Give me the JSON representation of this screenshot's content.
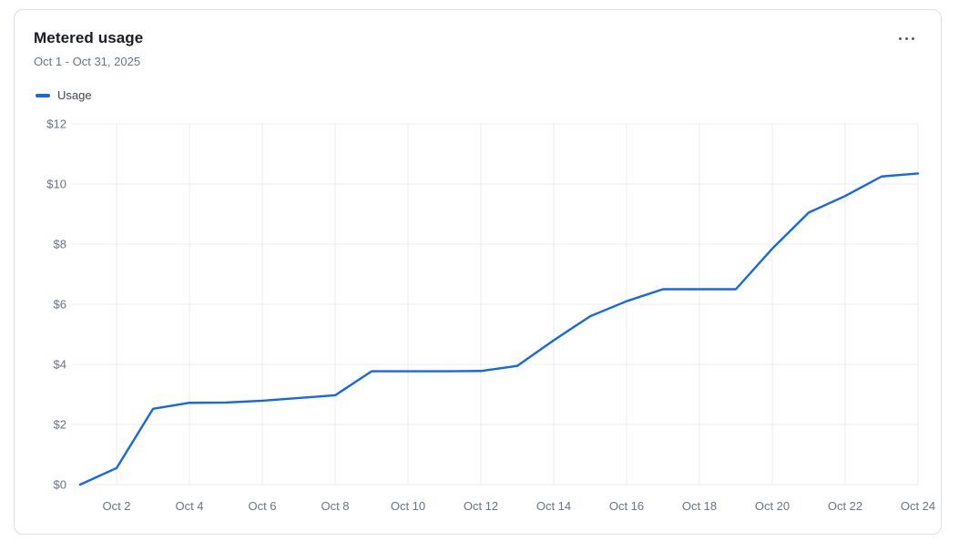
{
  "card": {
    "title": "Metered usage",
    "date_range": "Oct 1 - Oct 31, 2025",
    "menu_icon": "ellipsis-icon"
  },
  "legend": {
    "series_label": "Usage"
  },
  "colors": {
    "line": "#1467e8",
    "grid": "#e8ebef",
    "axis_text": "#687385",
    "title_text": "#1a1b25",
    "subtitle_text": "#687385",
    "legend_text": "#414552",
    "card_border": "#d9dfe6",
    "menu_dots": "#545b66"
  },
  "chart_data": {
    "type": "line",
    "title": "Metered usage",
    "subtitle": "Oct 1 - Oct 31, 2025",
    "y_unit": "$",
    "ylim": [
      0,
      12
    ],
    "y_tick_step": 2,
    "grid": true,
    "legend_position": "top-left",
    "x": [
      "Oct 1",
      "Oct 2",
      "Oct 3",
      "Oct 4",
      "Oct 5",
      "Oct 6",
      "Oct 7",
      "Oct 8",
      "Oct 9",
      "Oct 10",
      "Oct 11",
      "Oct 12",
      "Oct 13",
      "Oct 14",
      "Oct 15",
      "Oct 16",
      "Oct 17",
      "Oct 18",
      "Oct 19",
      "Oct 20",
      "Oct 21",
      "Oct 22",
      "Oct 23",
      "Oct 24"
    ],
    "series": [
      {
        "name": "Usage",
        "values": [
          0,
          0.55,
          2.52,
          2.72,
          2.73,
          2.79,
          2.88,
          2.97,
          3.77,
          3.77,
          3.77,
          3.78,
          3.95,
          4.8,
          5.6,
          6.1,
          6.5,
          6.5,
          6.5,
          7.85,
          9.05,
          9.6,
          10.25,
          10.35
        ]
      }
    ],
    "x_tick_labels": [
      "Oct 2",
      "Oct 4",
      "Oct 6",
      "Oct 8",
      "Oct 10",
      "Oct 12",
      "Oct 14",
      "Oct 16",
      "Oct 18",
      "Oct 20",
      "Oct 22",
      "Oct 24"
    ],
    "y_tick_labels": [
      "$0",
      "$2",
      "$4",
      "$6",
      "$8",
      "$10",
      "$12"
    ]
  }
}
